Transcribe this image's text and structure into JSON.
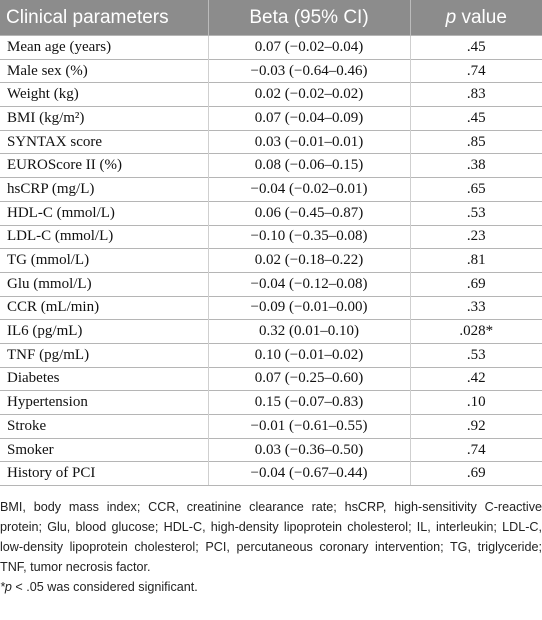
{
  "table": {
    "header": [
      "Clinical parameters",
      "Beta (95% CI)",
      "p value"
    ],
    "rows": [
      [
        "Mean age (years)",
        "0.07 (−0.02–0.04)",
        ".45"
      ],
      [
        "Male sex (%)",
        "−0.03 (−0.64–0.46)",
        ".74"
      ],
      [
        "Weight (kg)",
        "0.02 (−0.02–0.02)",
        ".83"
      ],
      [
        "BMI (kg/m²)",
        "0.07 (−0.04–0.09)",
        ".45"
      ],
      [
        "SYNTAX score",
        "0.03 (−0.01–0.01)",
        ".85"
      ],
      [
        "EUROScore II (%)",
        "0.08 (−0.06–0.15)",
        ".38"
      ],
      [
        "hsCRP (mg/L)",
        "−0.04 (−0.02–0.01)",
        ".65"
      ],
      [
        "HDL-C (mmol/L)",
        "0.06 (−0.45–0.87)",
        ".53"
      ],
      [
        "LDL-C (mmol/L)",
        "−0.10 (−0.35–0.08)",
        ".23"
      ],
      [
        "TG (mmol/L)",
        "0.02 (−0.18–0.22)",
        ".81"
      ],
      [
        "Glu (mmol/L)",
        "−0.04 (−0.12–0.08)",
        ".69"
      ],
      [
        "CCR (mL/min)",
        "−0.09 (−0.01–0.00)",
        ".33"
      ],
      [
        "IL6 (pg/mL)",
        "0.32 (0.01–0.10)",
        ".028*"
      ],
      [
        "TNF (pg/mL)",
        "0.10 (−0.01–0.02)",
        ".53"
      ],
      [
        "Diabetes",
        "0.07 (−0.25–0.60)",
        ".42"
      ],
      [
        "Hypertension",
        "0.15 (−0.07–0.83)",
        ".10"
      ],
      [
        "Stroke",
        "−0.01 (−0.61–0.55)",
        ".92"
      ],
      [
        "Smoker",
        "0.03 (−0.36–0.50)",
        ".74"
      ],
      [
        "History of PCI",
        "−0.04 (−0.67–0.44)",
        ".69"
      ]
    ]
  },
  "footnotes": [
    "BMI, body mass index; CCR, creatinine clearance rate; hsCRP, high-sensitivity C-reactive protein; Glu, blood glucose; HDL-C, high-density lipoprotein cholesterol; IL, interleukin; LDL-C, low-density lipoprotein cholesterol; PCI, percutaneous coronary intervention; TG, triglyceride; TNF, tumor necrosis factor.",
    "*p < .05 was considered significant."
  ]
}
